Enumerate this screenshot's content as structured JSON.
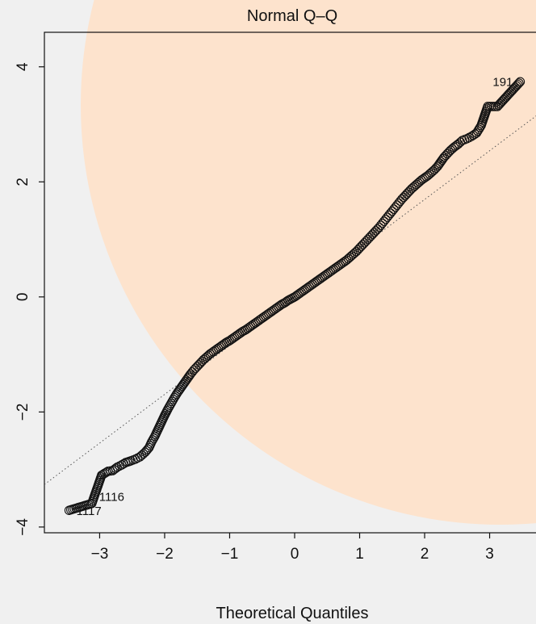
{
  "chart_data": {
    "type": "scatter",
    "title": "Normal Q–Q",
    "xlabel": "Theoretical Quantiles",
    "ylabel": "",
    "xlim": [
      -3.85,
      3.85
    ],
    "ylim": [
      -4.1,
      4.6
    ],
    "x_ticks": [
      -3,
      -2,
      -1,
      0,
      1,
      2,
      3
    ],
    "x_tick_labels": [
      "−3",
      "−2",
      "−1",
      "0",
      "1",
      "2",
      "3"
    ],
    "y_ticks": [
      -4,
      -2,
      0,
      2,
      4
    ],
    "y_tick_labels": [
      "−4",
      "−2",
      "0",
      "2",
      "4"
    ],
    "reference_line": {
      "slope": 0.847,
      "intercept": 0.0
    },
    "grid": false,
    "point_labels": [
      {
        "text": "191",
        "x": 3.47,
        "y": 3.74
      },
      {
        "text": "1116",
        "x": -3.12,
        "y": -3.59
      },
      {
        "text": "1117",
        "x": -3.47,
        "y": -3.71
      }
    ],
    "points": [
      [
        -3.47,
        -3.71
      ],
      [
        -3.12,
        -3.59
      ],
      [
        -2.97,
        -3.1
      ],
      [
        -2.87,
        -3.03
      ],
      [
        -2.8,
        -3.02
      ],
      [
        -2.73,
        -2.96
      ],
      [
        -2.66,
        -2.92
      ],
      [
        -2.6,
        -2.88
      ],
      [
        -2.52,
        -2.85
      ],
      [
        -2.45,
        -2.82
      ],
      [
        -2.38,
        -2.78
      ],
      [
        -2.3,
        -2.7
      ],
      [
        -2.24,
        -2.62
      ],
      [
        -2.2,
        -2.52
      ],
      [
        -2.15,
        -2.42
      ],
      [
        -2.1,
        -2.3
      ],
      [
        -2.05,
        -2.18
      ],
      [
        -2.0,
        -2.06
      ],
      [
        -1.95,
        -1.95
      ],
      [
        -1.9,
        -1.85
      ],
      [
        -1.85,
        -1.75
      ],
      [
        -1.8,
        -1.66
      ],
      [
        -1.75,
        -1.58
      ],
      [
        -1.7,
        -1.5
      ],
      [
        -1.65,
        -1.42
      ],
      [
        -1.6,
        -1.34
      ],
      [
        -1.55,
        -1.27
      ],
      [
        -1.5,
        -1.21
      ],
      [
        -1.45,
        -1.15
      ],
      [
        -1.4,
        -1.09
      ],
      [
        -1.35,
        -1.04
      ],
      [
        -1.3,
        -0.99
      ],
      [
        -1.25,
        -0.95
      ],
      [
        -1.2,
        -0.91
      ],
      [
        -1.15,
        -0.87
      ],
      [
        -1.1,
        -0.83
      ],
      [
        -1.05,
        -0.79
      ],
      [
        -1.0,
        -0.76
      ],
      [
        -0.95,
        -0.72
      ],
      [
        -0.9,
        -0.68
      ],
      [
        -0.85,
        -0.64
      ],
      [
        -0.8,
        -0.6
      ],
      [
        -0.75,
        -0.57
      ],
      [
        -0.7,
        -0.53
      ],
      [
        -0.65,
        -0.49
      ],
      [
        -0.6,
        -0.45
      ],
      [
        -0.55,
        -0.41
      ],
      [
        -0.5,
        -0.37
      ],
      [
        -0.45,
        -0.33
      ],
      [
        -0.4,
        -0.29
      ],
      [
        -0.35,
        -0.25
      ],
      [
        -0.3,
        -0.21
      ],
      [
        -0.25,
        -0.17
      ],
      [
        -0.2,
        -0.13
      ],
      [
        -0.15,
        -0.1
      ],
      [
        -0.1,
        -0.06
      ],
      [
        -0.05,
        -0.03
      ],
      [
        0.0,
        0.0
      ],
      [
        0.05,
        0.04
      ],
      [
        0.1,
        0.08
      ],
      [
        0.15,
        0.12
      ],
      [
        0.2,
        0.16
      ],
      [
        0.25,
        0.2
      ],
      [
        0.3,
        0.24
      ],
      [
        0.35,
        0.28
      ],
      [
        0.4,
        0.32
      ],
      [
        0.45,
        0.36
      ],
      [
        0.5,
        0.4
      ],
      [
        0.55,
        0.44
      ],
      [
        0.6,
        0.48
      ],
      [
        0.65,
        0.52
      ],
      [
        0.7,
        0.56
      ],
      [
        0.75,
        0.6
      ],
      [
        0.8,
        0.64
      ],
      [
        0.85,
        0.69
      ],
      [
        0.9,
        0.74
      ],
      [
        0.95,
        0.79
      ],
      [
        1.0,
        0.85
      ],
      [
        1.05,
        0.91
      ],
      [
        1.1,
        0.97
      ],
      [
        1.15,
        1.03
      ],
      [
        1.2,
        1.09
      ],
      [
        1.25,
        1.15
      ],
      [
        1.3,
        1.21
      ],
      [
        1.35,
        1.28
      ],
      [
        1.4,
        1.35
      ],
      [
        1.45,
        1.42
      ],
      [
        1.5,
        1.49
      ],
      [
        1.55,
        1.56
      ],
      [
        1.6,
        1.63
      ],
      [
        1.65,
        1.7
      ],
      [
        1.7,
        1.76
      ],
      [
        1.75,
        1.82
      ],
      [
        1.8,
        1.88
      ],
      [
        1.85,
        1.93
      ],
      [
        1.9,
        1.98
      ],
      [
        1.95,
        2.03
      ],
      [
        2.0,
        2.07
      ],
      [
        2.05,
        2.11
      ],
      [
        2.1,
        2.16
      ],
      [
        2.15,
        2.21
      ],
      [
        2.2,
        2.27
      ],
      [
        2.25,
        2.35
      ],
      [
        2.3,
        2.43
      ],
      [
        2.35,
        2.49
      ],
      [
        2.4,
        2.55
      ],
      [
        2.45,
        2.6
      ],
      [
        2.52,
        2.66
      ],
      [
        2.58,
        2.72
      ],
      [
        2.65,
        2.75
      ],
      [
        2.72,
        2.79
      ],
      [
        2.8,
        2.85
      ],
      [
        2.87,
        2.98
      ],
      [
        2.97,
        3.31
      ],
      [
        3.12,
        3.31
      ],
      [
        3.47,
        3.74
      ]
    ]
  }
}
